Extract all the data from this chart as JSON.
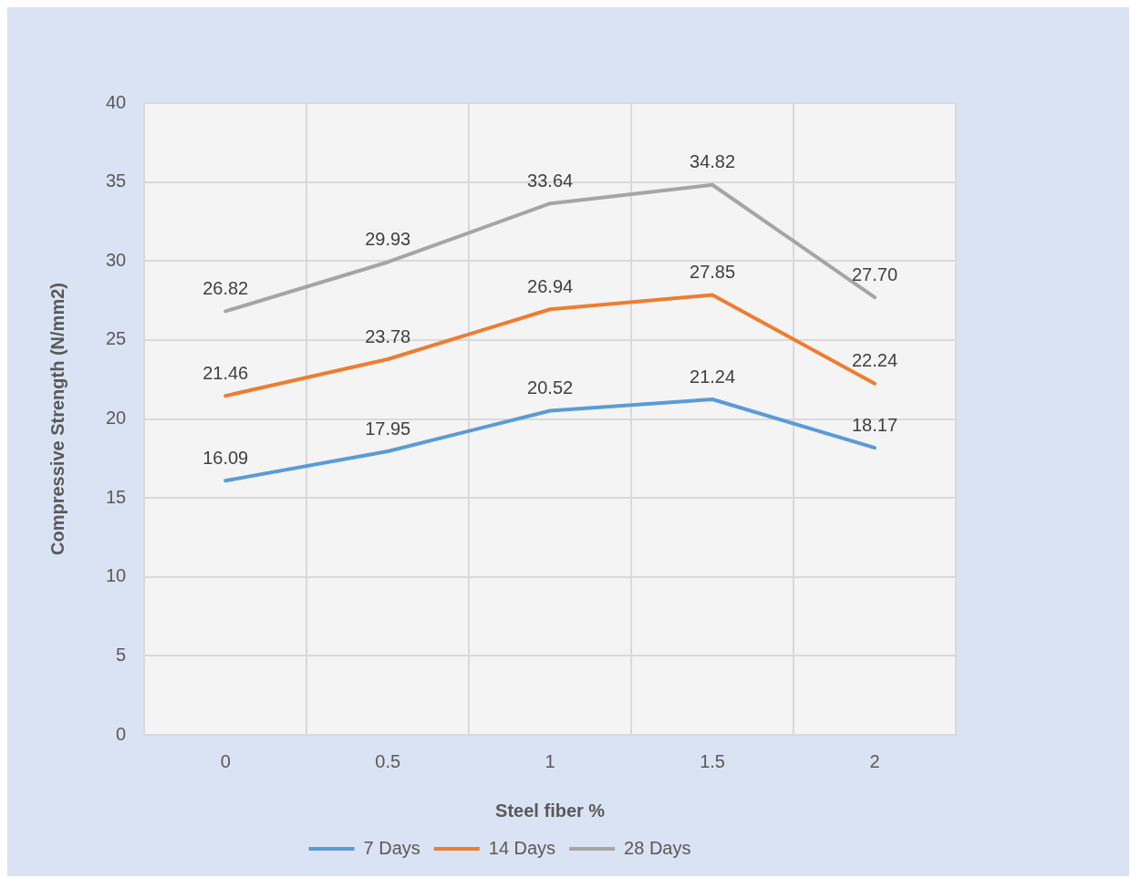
{
  "chart_data": {
    "type": "line",
    "xlabel": "Steel fiber %",
    "ylabel": "Compressive Strength (N/mm2)",
    "categories": [
      "0",
      "0.5",
      "1",
      "1.5",
      "2"
    ],
    "series": [
      {
        "name": "7 Days",
        "color": "#5b9bd5",
        "values": [
          16.09,
          17.95,
          20.52,
          21.24,
          18.17
        ],
        "value_labels": [
          "16.09",
          "17.95",
          "20.52",
          "21.24",
          "18.17"
        ]
      },
      {
        "name": "14 Days",
        "color": "#ed7d31",
        "values": [
          21.46,
          23.78,
          26.94,
          27.85,
          22.24
        ],
        "value_labels": [
          "21.46",
          "23.78",
          "26.94",
          "27.85",
          "22.24"
        ]
      },
      {
        "name": "28 Days",
        "color": "#a5a5a5",
        "values": [
          26.82,
          29.93,
          33.64,
          34.82,
          27.7
        ],
        "value_labels": [
          "26.82",
          "29.93",
          "33.64",
          "34.82",
          "27.70"
        ]
      }
    ],
    "ylim": [
      0,
      40
    ],
    "yticks": [
      0,
      5,
      10,
      15,
      20,
      25,
      30,
      35,
      40
    ],
    "grid": true,
    "legend": "bottom",
    "marker": "none",
    "line_style": "solid"
  }
}
